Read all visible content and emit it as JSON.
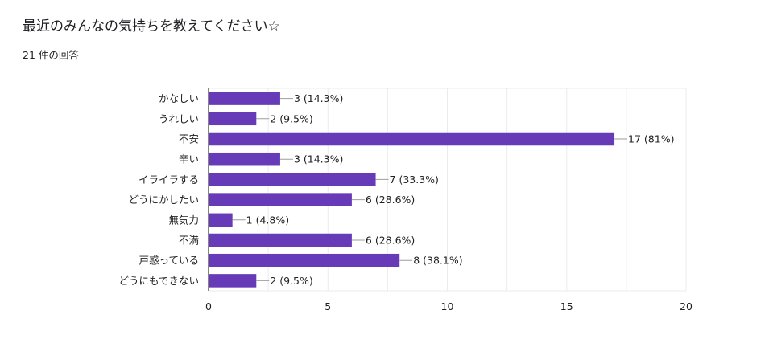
{
  "form": {
    "question_title": "最近のみんなの気持ちを教えてください☆",
    "response_count": "21 件の回答"
  },
  "colors": {
    "bar": "#673ab7",
    "gridline": "#ebebeb",
    "axis": "#333333",
    "text": "#202124"
  },
  "chart_data": {
    "type": "bar",
    "orientation": "horizontal",
    "title": "",
    "xlabel": "",
    "ylabel": "",
    "categories": [
      "かなしい",
      "うれしい",
      "不安",
      "辛い",
      "イライラする",
      "どうにかしたい",
      "無気力",
      "不満",
      "戸惑っている",
      "どうにもできない"
    ],
    "values": [
      3,
      2,
      17,
      3,
      7,
      6,
      1,
      6,
      8,
      2
    ],
    "data_labels": [
      "3 (14.3%)",
      "2 (9.5%)",
      "17 (81%)",
      "3 (14.3%)",
      "7 (33.3%)",
      "6 (28.6%)",
      "1 (4.8%)",
      "6 (28.6%)",
      "8 (38.1%)",
      "2 (9.5%)"
    ],
    "xlim": [
      0,
      20
    ],
    "x_ticks": [
      0,
      5,
      10,
      15,
      20
    ],
    "grid": true,
    "legend": "none"
  }
}
